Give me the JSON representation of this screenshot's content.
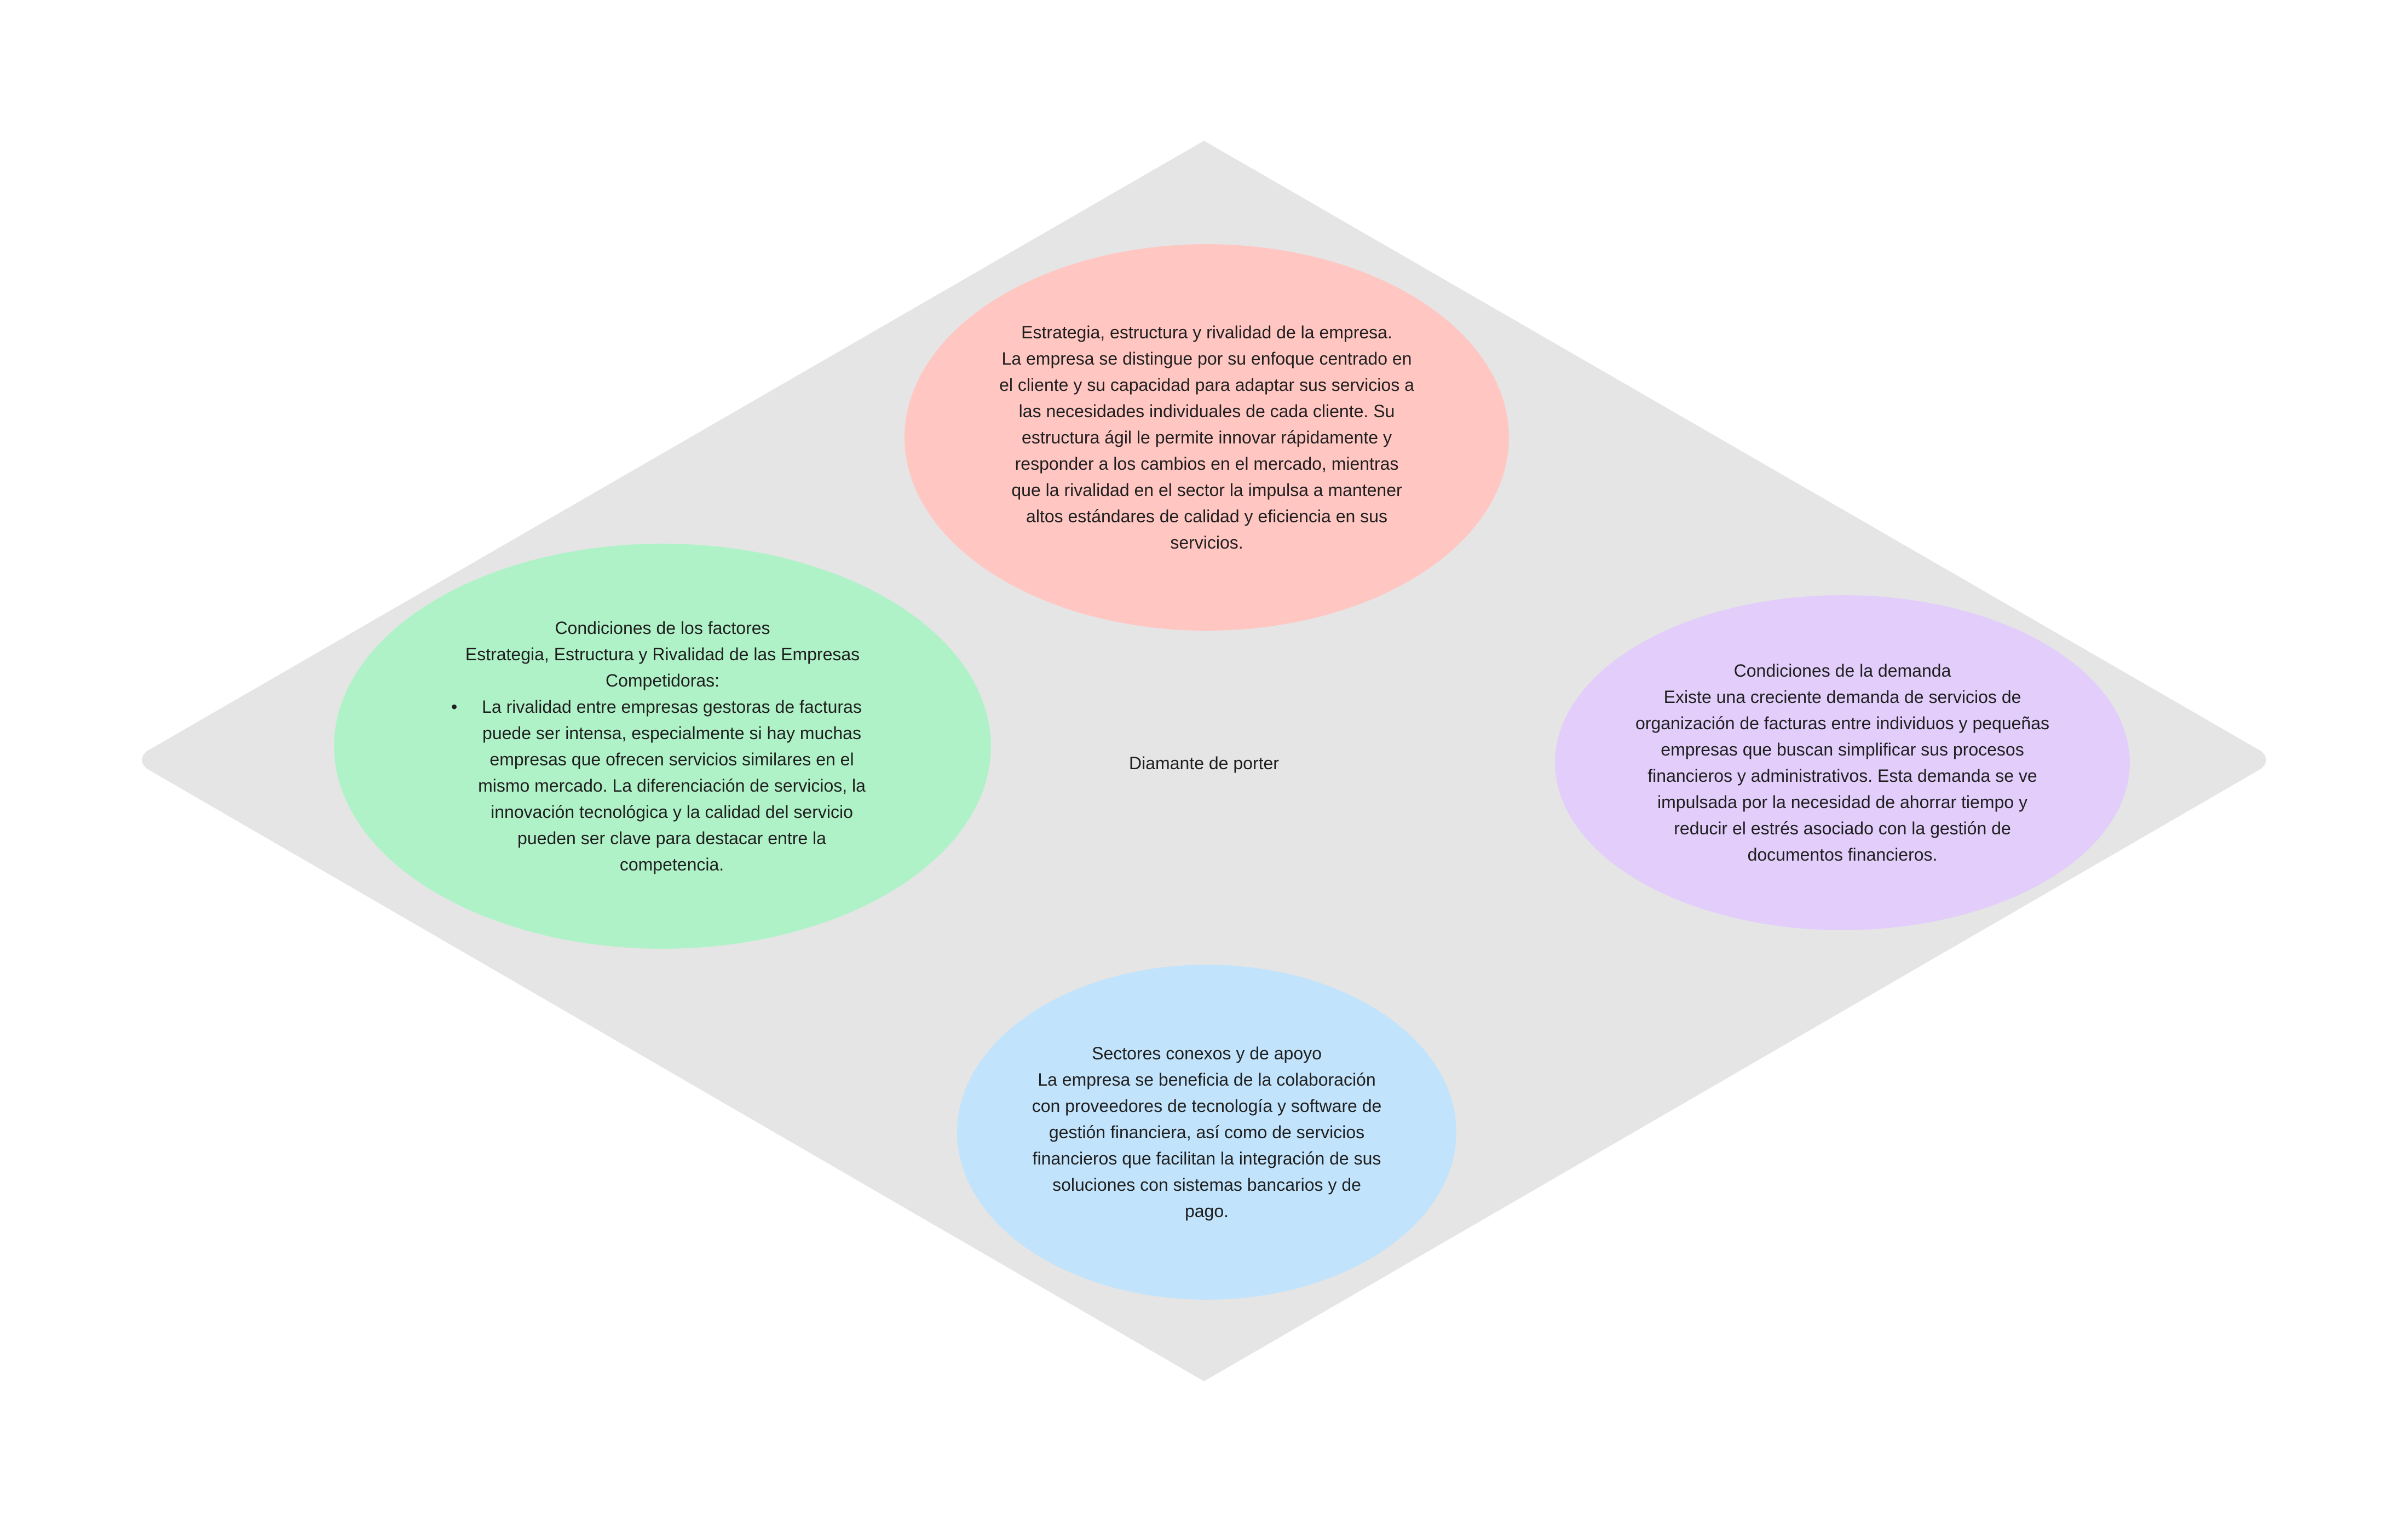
{
  "colors": {
    "diamond": "#e5e5e5",
    "top": "#ffc6c2",
    "left": "#b0f2c8",
    "right": "#e2cdfb",
    "bottom": "#c1e3fb"
  },
  "center": {
    "label": "Diamante de porter"
  },
  "top": {
    "title": "Estrategia, estructura y rivalidad de la empresa.",
    "body": "La empresa se distingue por su enfoque centrado en el cliente y su capacidad para adaptar sus servicios a las necesidades individuales de cada cliente. Su estructura ágil le permite innovar rápidamente y responder a los cambios en el mercado, mientras que la rivalidad en el sector la impulsa a mantener altos estándares de calidad y eficiencia en sus servicios."
  },
  "left": {
    "title": "Condiciones de los factores",
    "subtitle": "Estrategia, Estructura y Rivalidad de las Empresas Competidoras:",
    "bullet": "La rivalidad entre empresas gestoras de facturas puede ser intensa, especialmente si hay muchas empresas que ofrecen servicios similares en el mismo mercado. La diferenciación de servicios, la innovación tecnológica y la calidad del servicio pueden ser clave para destacar entre la competencia."
  },
  "right": {
    "title": "Condiciones de la demanda",
    "body": "Existe una creciente demanda de servicios de organización de facturas entre individuos y pequeñas empresas que buscan simplificar sus procesos financieros y administrativos. Esta demanda se ve impulsada por la necesidad de ahorrar tiempo y reducir el estrés asociado con la gestión de documentos financieros."
  },
  "bottom": {
    "title": "Sectores conexos y de apoyo",
    "body": "La empresa se beneficia de la colaboración con proveedores de tecnología y software de gestión financiera, así como de servicios financieros que facilitan la integración de sus soluciones con sistemas bancarios y de pago."
  }
}
